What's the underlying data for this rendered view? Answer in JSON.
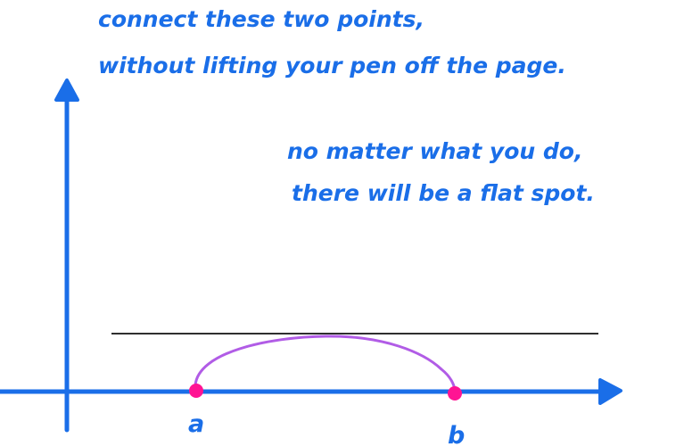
{
  "instruction": {
    "line1": "connect these two points,",
    "line2": "without lifting your pen off the page."
  },
  "observation": {
    "line1": "no matter what you do,",
    "line2": "there will be a flat spot."
  },
  "points": {
    "a_label": "a",
    "b_label": "b"
  },
  "colors": {
    "ink": "#1a6ee8",
    "curve": "#b15ce6",
    "point": "#ff1493",
    "tangent": "#111111"
  }
}
